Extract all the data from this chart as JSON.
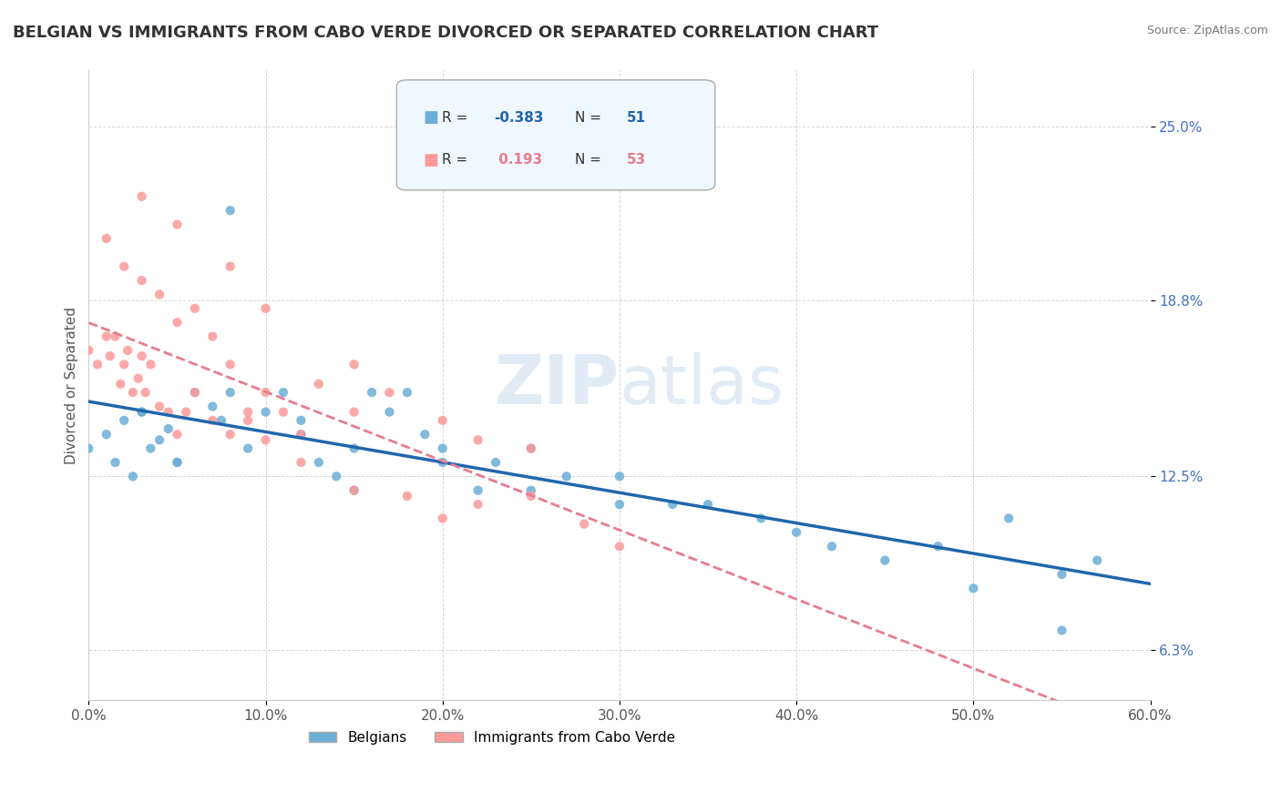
{
  "title": "BELGIAN VS IMMIGRANTS FROM CABO VERDE DIVORCED OR SEPARATED CORRELATION CHART",
  "source": "Source: ZipAtlas.com",
  "ylabel": "Divorced or Separated",
  "xlabel_ticks": [
    "0.0%",
    "10.0%",
    "20.0%",
    "30.0%",
    "40.0%",
    "50.0%",
    "60.0%"
  ],
  "xlabel_vals": [
    0.0,
    0.1,
    0.2,
    0.3,
    0.4,
    0.5,
    0.6
  ],
  "ytick_labels": [
    "6.3%",
    "12.5%",
    "18.8%",
    "25.0%"
  ],
  "ytick_vals": [
    0.063,
    0.125,
    0.188,
    0.25
  ],
  "xlim": [
    0.0,
    0.6
  ],
  "ylim": [
    0.045,
    0.27
  ],
  "belgians_R": -0.383,
  "belgians_N": 51,
  "cabo_verde_R": 0.193,
  "cabo_verde_N": 53,
  "belgians_color": "#6baed6",
  "cabo_verde_color": "#fb9a99",
  "belgians_line_color": "#2166ac",
  "cabo_verde_line_color": "#e77c8e",
  "watermark_zip": "ZIP",
  "watermark_atlas": "atlas",
  "belgians_scatter_x": [
    0.0,
    0.01,
    0.015,
    0.02,
    0.025,
    0.03,
    0.035,
    0.04,
    0.045,
    0.05,
    0.06,
    0.07,
    0.075,
    0.08,
    0.09,
    0.1,
    0.11,
    0.12,
    0.13,
    0.14,
    0.15,
    0.16,
    0.17,
    0.18,
    0.19,
    0.2,
    0.22,
    0.23,
    0.25,
    0.27,
    0.3,
    0.33,
    0.35,
    0.38,
    0.4,
    0.42,
    0.45,
    0.48,
    0.5,
    0.52,
    0.55,
    0.57,
    0.03,
    0.05,
    0.08,
    0.12,
    0.15,
    0.2,
    0.25,
    0.3,
    0.55
  ],
  "belgians_scatter_y": [
    0.135,
    0.14,
    0.13,
    0.145,
    0.125,
    0.148,
    0.135,
    0.138,
    0.142,
    0.13,
    0.155,
    0.15,
    0.145,
    0.22,
    0.135,
    0.148,
    0.155,
    0.14,
    0.13,
    0.125,
    0.12,
    0.155,
    0.148,
    0.155,
    0.14,
    0.135,
    0.12,
    0.13,
    0.135,
    0.125,
    0.125,
    0.115,
    0.115,
    0.11,
    0.105,
    0.1,
    0.095,
    0.1,
    0.085,
    0.11,
    0.07,
    0.095,
    0.148,
    0.13,
    0.155,
    0.145,
    0.135,
    0.13,
    0.12,
    0.115,
    0.09
  ],
  "cabo_verde_scatter_x": [
    0.0,
    0.005,
    0.01,
    0.012,
    0.015,
    0.018,
    0.02,
    0.022,
    0.025,
    0.028,
    0.03,
    0.032,
    0.035,
    0.04,
    0.045,
    0.05,
    0.055,
    0.06,
    0.07,
    0.08,
    0.09,
    0.1,
    0.11,
    0.12,
    0.13,
    0.15,
    0.17,
    0.2,
    0.22,
    0.25,
    0.01,
    0.02,
    0.03,
    0.04,
    0.05,
    0.06,
    0.07,
    0.08,
    0.09,
    0.1,
    0.12,
    0.15,
    0.18,
    0.2,
    0.22,
    0.25,
    0.28,
    0.3,
    0.03,
    0.05,
    0.08,
    0.1,
    0.15
  ],
  "cabo_verde_scatter_y": [
    0.17,
    0.165,
    0.175,
    0.168,
    0.175,
    0.158,
    0.165,
    0.17,
    0.155,
    0.16,
    0.168,
    0.155,
    0.165,
    0.15,
    0.148,
    0.14,
    0.148,
    0.155,
    0.145,
    0.14,
    0.145,
    0.155,
    0.148,
    0.14,
    0.158,
    0.148,
    0.155,
    0.145,
    0.138,
    0.135,
    0.21,
    0.2,
    0.195,
    0.19,
    0.18,
    0.185,
    0.175,
    0.165,
    0.148,
    0.138,
    0.13,
    0.12,
    0.118,
    0.11,
    0.115,
    0.118,
    0.108,
    0.1,
    0.225,
    0.215,
    0.2,
    0.185,
    0.165
  ],
  "legend_box_facecolor": "#f0f8ff",
  "legend_R_color_belgian": "#2166ac",
  "legend_R_color_cabo": "#e77c8e",
  "title_fontsize": 13,
  "axis_label_fontsize": 11,
  "tick_fontsize": 11
}
